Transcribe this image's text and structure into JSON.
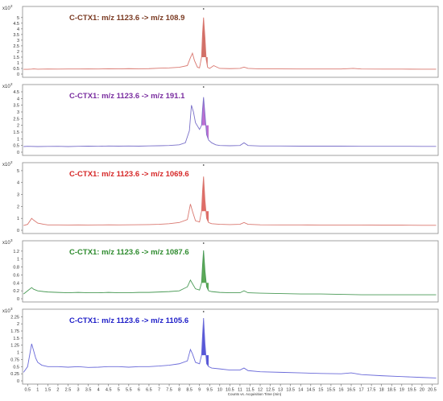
{
  "chart_data": [
    {
      "type": "line",
      "title": "C-CTX1: m/z 1123.6 -> m/z 108.9",
      "color": "#d9776f",
      "fill_color": "#c9574d",
      "title_color": "#7a3a22",
      "scale_label": "x10",
      "scale_exp": "2",
      "ylim": [
        0,
        5.7
      ],
      "yticks": [
        "0",
        "0.5",
        "1",
        "1.5",
        "2",
        "2.5",
        "3",
        "3.5",
        "4",
        "4.5",
        "5"
      ],
      "x": [
        0.3,
        0.5,
        0.7,
        0.8,
        1.0,
        1.5,
        2.0,
        2.5,
        3.0,
        3.5,
        4.0,
        4.5,
        5.0,
        5.5,
        6.0,
        6.5,
        7.0,
        7.5,
        8.0,
        8.4,
        8.55,
        8.65,
        8.75,
        8.9,
        9.0,
        9.1,
        9.15,
        9.2,
        9.27,
        9.33,
        9.4,
        9.5,
        9.7,
        10.0,
        10.5,
        11.0,
        11.2,
        11.4,
        12.0,
        13.0,
        14.0,
        15.0,
        16.0,
        16.6,
        17.0,
        18.0,
        19.0,
        20.0,
        20.7
      ],
      "y": [
        0.42,
        0.42,
        0.44,
        0.46,
        0.43,
        0.45,
        0.44,
        0.45,
        0.45,
        0.46,
        0.45,
        0.47,
        0.46,
        0.48,
        0.47,
        0.48,
        0.52,
        0.55,
        0.6,
        0.75,
        1.45,
        1.85,
        1.2,
        0.6,
        0.55,
        1.5,
        3.6,
        5.0,
        3.2,
        1.3,
        0.6,
        0.5,
        0.75,
        0.5,
        0.48,
        0.5,
        0.62,
        0.5,
        0.46,
        0.46,
        0.45,
        0.45,
        0.45,
        0.5,
        0.45,
        0.44,
        0.44,
        0.43,
        0.43
      ],
      "peak_range": [
        9.05,
        9.45
      ]
    },
    {
      "type": "line",
      "title": "C-CTX1: m/z 1123.6 -> m/z 191.1",
      "color": "#7a70c9",
      "fill_color": "#b257c9",
      "title_color": "#7a2ea0",
      "scale_label": "x10",
      "scale_exp": "2",
      "ylim": [
        0,
        4.8
      ],
      "yticks": [
        "0",
        "0.5",
        "1",
        "1.5",
        "2",
        "2.5",
        "3",
        "3.5",
        "4",
        "4.5"
      ],
      "x": [
        0.3,
        0.5,
        1.0,
        1.5,
        2.0,
        2.5,
        3.0,
        3.5,
        4.0,
        4.5,
        5.0,
        5.5,
        6.0,
        6.5,
        7.0,
        7.5,
        8.0,
        8.3,
        8.5,
        8.6,
        8.7,
        8.8,
        9.0,
        9.1,
        9.15,
        9.2,
        9.27,
        9.35,
        9.45,
        9.6,
        9.8,
        10.0,
        10.5,
        11.0,
        11.2,
        11.4,
        12.0,
        13.0,
        14.0,
        15.0,
        16.0,
        17.0,
        18.0,
        19.0,
        20.0,
        20.7
      ],
      "y": [
        0.42,
        0.44,
        0.42,
        0.43,
        0.44,
        0.42,
        0.44,
        0.45,
        0.44,
        0.46,
        0.45,
        0.46,
        0.45,
        0.47,
        0.48,
        0.5,
        0.55,
        0.7,
        1.6,
        3.5,
        3.0,
        2.2,
        1.7,
        2.0,
        3.2,
        4.1,
        2.8,
        1.3,
        0.9,
        0.7,
        0.55,
        0.5,
        0.48,
        0.5,
        0.7,
        0.5,
        0.46,
        0.46,
        0.45,
        0.45,
        0.45,
        0.44,
        0.44,
        0.44,
        0.43,
        0.43
      ],
      "peak_range": [
        9.05,
        9.5
      ]
    },
    {
      "type": "line",
      "title": "C-CTX1: m/z 1123.6 -> m/z 1069.6",
      "color": "#d9776f",
      "fill_color": "#d9534d",
      "title_color": "#d62828",
      "scale_label": "x10",
      "scale_exp": "2",
      "ylim": [
        0,
        5.4
      ],
      "yticks": [
        "0",
        "1",
        "2",
        "3",
        "4",
        "5"
      ],
      "x": [
        0.3,
        0.5,
        0.7,
        0.8,
        1.0,
        1.3,
        1.5,
        2.0,
        2.5,
        3.0,
        3.5,
        4.0,
        4.5,
        5.0,
        5.5,
        6.0,
        6.5,
        7.0,
        7.5,
        8.0,
        8.4,
        8.55,
        8.65,
        8.8,
        9.0,
        9.1,
        9.15,
        9.2,
        9.27,
        9.35,
        9.45,
        9.6,
        10.0,
        10.5,
        11.0,
        11.2,
        11.4,
        12.0,
        13.0,
        14.0,
        15.0,
        16.0,
        17.0,
        18.0,
        19.0,
        20.0,
        20.7
      ],
      "y": [
        0.4,
        0.5,
        1.0,
        0.85,
        0.6,
        0.5,
        0.45,
        0.45,
        0.44,
        0.45,
        0.44,
        0.45,
        0.46,
        0.45,
        0.46,
        0.47,
        0.48,
        0.5,
        0.55,
        0.65,
        0.9,
        2.2,
        1.6,
        0.8,
        0.7,
        1.6,
        3.3,
        4.5,
        2.5,
        1.0,
        0.65,
        0.55,
        0.5,
        0.48,
        0.5,
        0.65,
        0.5,
        0.46,
        0.45,
        0.45,
        0.44,
        0.44,
        0.44,
        0.43,
        0.43,
        0.42,
        0.42
      ],
      "peak_range": [
        9.05,
        9.5
      ]
    },
    {
      "type": "line",
      "title": "C-CTX1: m/z 1123.6 -> m/z 1087.6",
      "color": "#4a9a56",
      "fill_color": "#3f9a3a",
      "title_color": "#2e8b2e",
      "scale_label": "x10",
      "scale_exp": "3",
      "ylim": [
        0,
        1.38
      ],
      "yticks": [
        "0",
        "0.2",
        "0.4",
        "0.6",
        "0.8",
        "1",
        "1.2"
      ],
      "x": [
        0.3,
        0.5,
        0.7,
        0.8,
        1.0,
        1.3,
        1.5,
        2.0,
        2.5,
        3.0,
        3.5,
        4.0,
        4.5,
        5.0,
        5.5,
        6.0,
        6.5,
        7.0,
        7.5,
        8.0,
        8.4,
        8.55,
        8.65,
        8.8,
        9.0,
        9.1,
        9.15,
        9.2,
        9.27,
        9.35,
        9.45,
        9.6,
        10.0,
        10.5,
        11.0,
        11.2,
        11.4,
        12.0,
        13.0,
        14.0,
        15.0,
        16.0,
        17.0,
        18.0,
        19.0,
        20.0,
        20.7
      ],
      "y": [
        0.12,
        0.2,
        0.28,
        0.24,
        0.2,
        0.18,
        0.17,
        0.16,
        0.15,
        0.16,
        0.15,
        0.15,
        0.16,
        0.15,
        0.15,
        0.16,
        0.16,
        0.17,
        0.18,
        0.2,
        0.3,
        0.47,
        0.38,
        0.25,
        0.22,
        0.4,
        0.85,
        1.22,
        0.7,
        0.3,
        0.2,
        0.18,
        0.16,
        0.15,
        0.15,
        0.2,
        0.15,
        0.14,
        0.13,
        0.12,
        0.12,
        0.11,
        0.1,
        0.1,
        0.1,
        0.1,
        0.1
      ],
      "peak_range": [
        9.05,
        9.5
      ]
    },
    {
      "type": "line",
      "title": "C-CTX1: m/z 1123.6 -> m/z 1105.6",
      "color": "#6a6ad9",
      "fill_color": "#3a3ad0",
      "title_color": "#2020c8",
      "scale_label": "x10",
      "scale_exp": "3",
      "ylim": [
        0,
        2.4
      ],
      "yticks": [
        "0",
        "0.25",
        "0.5",
        "0.75",
        "1",
        "1.25",
        "1.5",
        "1.75",
        "2",
        "2.25"
      ],
      "x": [
        0.3,
        0.5,
        0.6,
        0.7,
        0.8,
        0.9,
        1.0,
        1.2,
        1.5,
        2.0,
        2.5,
        3.0,
        3.5,
        4.0,
        4.5,
        5.0,
        5.5,
        6.0,
        6.5,
        7.0,
        7.5,
        8.0,
        8.4,
        8.55,
        8.65,
        8.8,
        9.0,
        9.1,
        9.15,
        9.2,
        9.27,
        9.35,
        9.45,
        9.6,
        10.0,
        10.5,
        11.0,
        11.2,
        11.4,
        12.0,
        13.0,
        14.0,
        15.0,
        16.0,
        16.5,
        17.0,
        18.0,
        19.0,
        20.0,
        20.7
      ],
      "y": [
        0.3,
        0.5,
        0.9,
        1.3,
        1.05,
        0.8,
        0.65,
        0.55,
        0.5,
        0.5,
        0.48,
        0.5,
        0.47,
        0.48,
        0.5,
        0.5,
        0.48,
        0.5,
        0.5,
        0.52,
        0.55,
        0.6,
        0.7,
        1.1,
        0.95,
        0.65,
        0.6,
        0.9,
        1.6,
        2.2,
        1.3,
        0.6,
        0.5,
        0.45,
        0.42,
        0.38,
        0.38,
        0.45,
        0.36,
        0.32,
        0.3,
        0.28,
        0.26,
        0.25,
        0.28,
        0.22,
        0.18,
        0.15,
        0.12,
        0.1
      ],
      "peak_range": [
        9.05,
        9.5
      ]
    }
  ],
  "x_axis": {
    "ticks": [
      "0.5",
      "1",
      "1.5",
      "2",
      "2.5",
      "3",
      "3.5",
      "4",
      "4.5",
      "5",
      "5.5",
      "6",
      "6.5",
      "7",
      "7.5",
      "8",
      "8.5",
      "9",
      "9.5",
      "10",
      "10.5",
      "11",
      "11.5",
      "12",
      "12.5",
      "13",
      "13.5",
      "14",
      "14.5",
      "15",
      "15.5",
      "16",
      "16.5",
      "17",
      "17.5",
      "18",
      "18.5",
      "19",
      "19.5",
      "20",
      "20.5"
    ],
    "xlim": [
      0.25,
      20.8
    ],
    "label": "Counts vs. Acquisition Time (min)"
  }
}
